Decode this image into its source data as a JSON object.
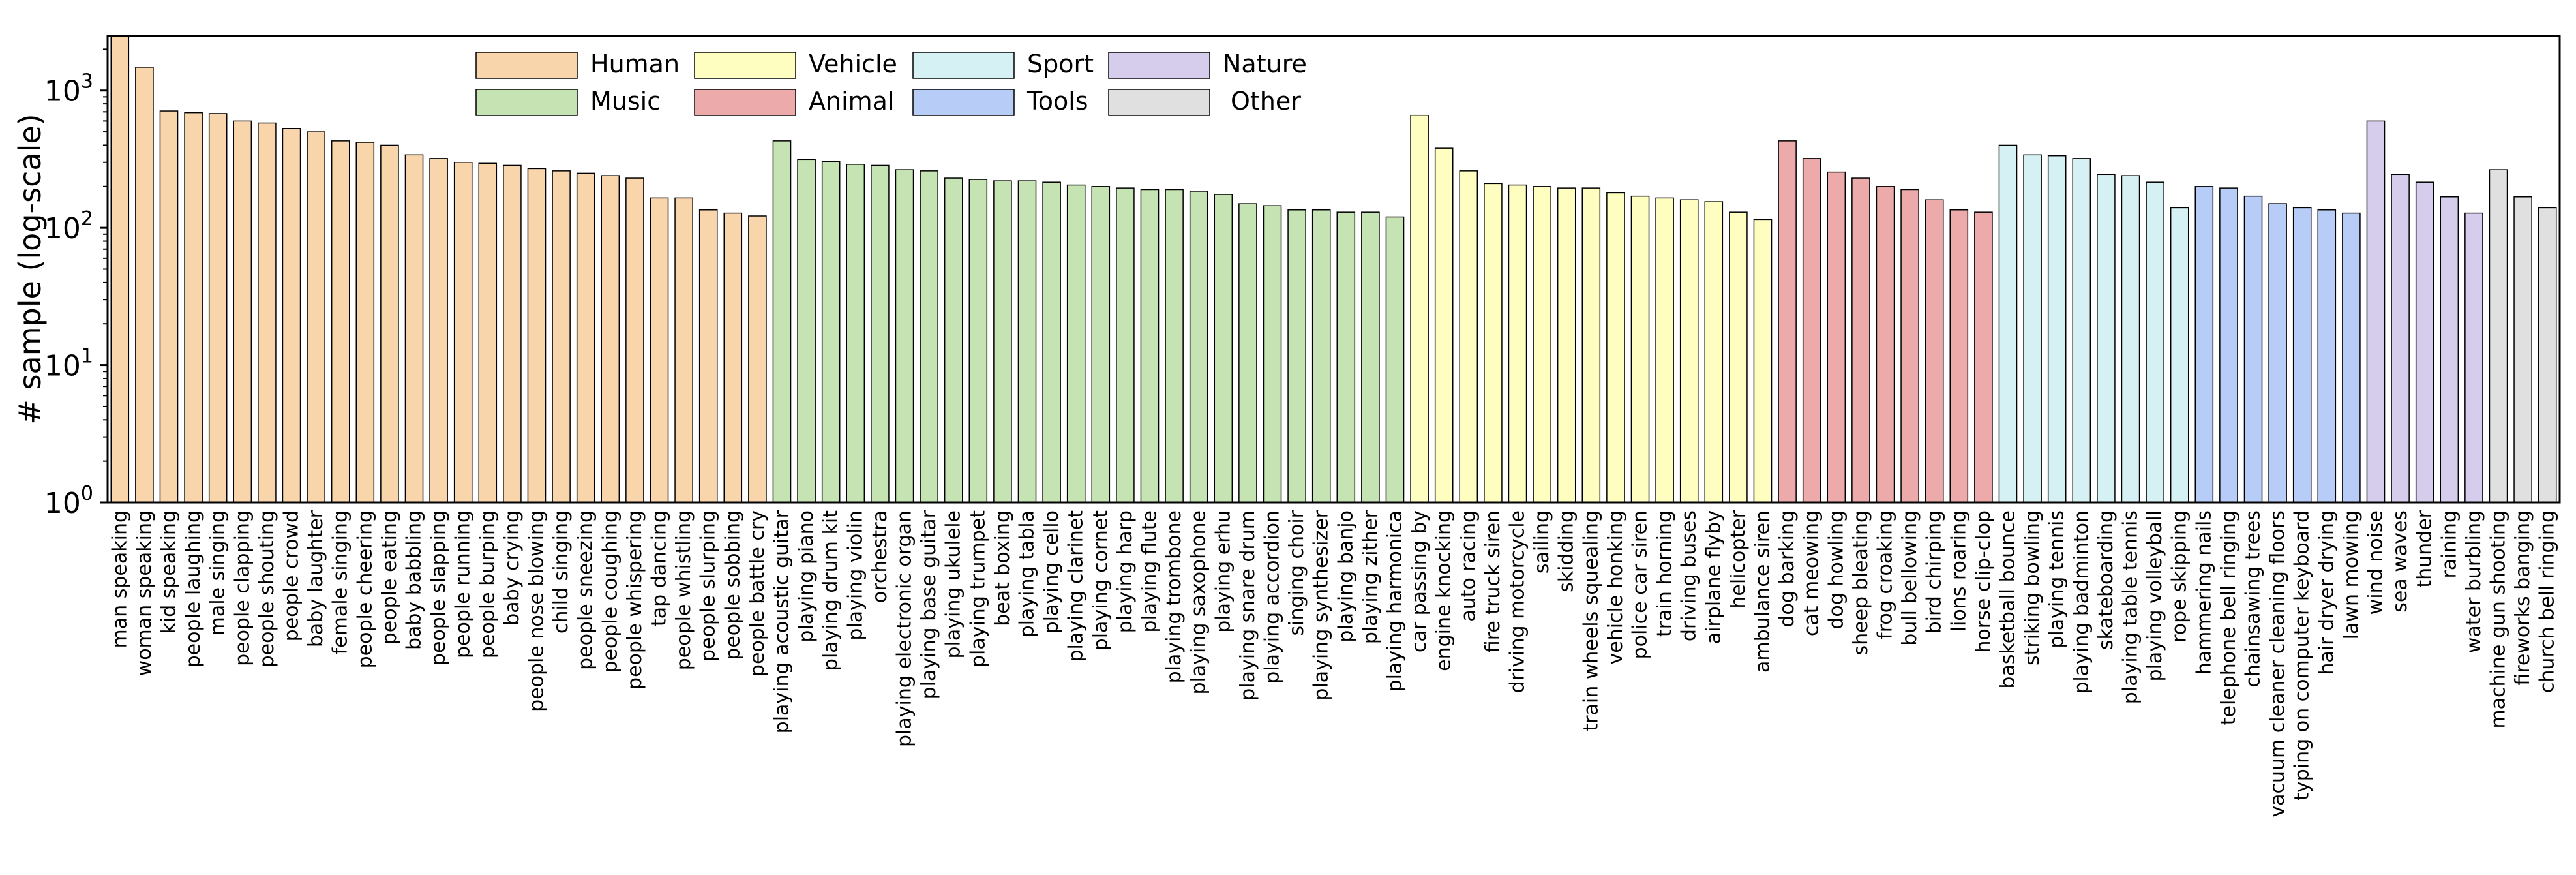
{
  "chart_data": {
    "type": "bar",
    "yscale": "log",
    "ylabel": "# sample (log-scale)",
    "ylim": [
      1,
      2500
    ],
    "y_ticks": [
      {
        "base": "10",
        "exp": "0",
        "value": 1
      },
      {
        "base": "10",
        "exp": "1",
        "value": 10
      },
      {
        "base": "10",
        "exp": "2",
        "value": 100
      },
      {
        "base": "10",
        "exp": "3",
        "value": 1000
      }
    ],
    "groups": [
      {
        "name": "Human",
        "color": "#f9d5ac"
      },
      {
        "name": "Music",
        "color": "#c6e4b3"
      },
      {
        "name": "Vehicle",
        "color": "#fefec0"
      },
      {
        "name": "Animal",
        "color": "#ecaaaa"
      },
      {
        "name": "Sport",
        "color": "#d6f1f4"
      },
      {
        "name": "Tools",
        "color": "#b7cdf8"
      },
      {
        "name": "Nature",
        "color": "#d5cdeb"
      },
      {
        "name": "Other",
        "color": "#e0e0e0"
      }
    ],
    "categories": [
      "man speaking",
      "woman speaking",
      "kid speaking",
      "people laughing",
      "male singing",
      "people clapping",
      "people shouting",
      "people crowd",
      "baby laughter",
      "female singing",
      "people cheering",
      "people eating",
      "baby babbling",
      "people slapping",
      "people running",
      "people burping",
      "baby crying",
      "people nose blowing",
      "child singing",
      "people sneezing",
      "people coughing",
      "people whispering",
      "tap dancing",
      "people whistling",
      "people slurping",
      "people sobbing",
      "people battle cry",
      "playing acoustic guitar",
      "playing piano",
      "playing drum kit",
      "playing violin",
      "orchestra",
      "playing electronic organ",
      "playing base guitar",
      "playing ukulele",
      "playing trumpet",
      "beat boxing",
      "playing tabla",
      "playing cello",
      "playing clarinet",
      "playing cornet",
      "playing harp",
      "playing flute",
      "playing trombone",
      "playing saxophone",
      "playing erhu",
      "playing snare drum",
      "playing accordion",
      "singing choir",
      "playing synthesizer",
      "playing banjo",
      "playing zither",
      "playing harmonica",
      "car passing by",
      "engine knocking",
      "auto racing",
      "fire truck siren",
      "driving motorcycle",
      "sailing",
      "skidding",
      "train wheels squealing",
      "vehicle honking",
      "police car siren",
      "train horning",
      "driving buses",
      "airplane flyby",
      "helicopter",
      "ambulance siren",
      "dog barking",
      "cat meowing",
      "dog howling",
      "sheep bleating",
      "frog croaking",
      "bull bellowing",
      "bird chirping",
      "lions roaring",
      "horse clip-clop",
      "basketball bounce",
      "striking bowling",
      "playing tennis",
      "playing badminton",
      "skateboarding",
      "playing table tennis",
      "playing volleyball",
      "rope skipping",
      "hammering nails",
      "telephone bell ringing",
      "chainsawing trees",
      "vacuum cleaner cleaning floors",
      "typing on computer keyboard",
      "hair dryer drying",
      "lawn mowing",
      "wind noise",
      "sea waves",
      "thunder",
      "raining",
      "water burbling",
      "machine gun shooting",
      "fireworks banging",
      "church bell ringing"
    ],
    "group_index": [
      0,
      0,
      0,
      0,
      0,
      0,
      0,
      0,
      0,
      0,
      0,
      0,
      0,
      0,
      0,
      0,
      0,
      0,
      0,
      0,
      0,
      0,
      0,
      0,
      0,
      0,
      0,
      1,
      1,
      1,
      1,
      1,
      1,
      1,
      1,
      1,
      1,
      1,
      1,
      1,
      1,
      1,
      1,
      1,
      1,
      1,
      1,
      1,
      1,
      1,
      1,
      1,
      1,
      2,
      2,
      2,
      2,
      2,
      2,
      2,
      2,
      2,
      2,
      2,
      2,
      2,
      2,
      2,
      3,
      3,
      3,
      3,
      3,
      3,
      3,
      3,
      3,
      4,
      4,
      4,
      4,
      4,
      4,
      4,
      4,
      5,
      5,
      5,
      5,
      5,
      5,
      5,
      6,
      6,
      6,
      6,
      6,
      7,
      7,
      7
    ],
    "values": [
      2500,
      1480,
      710,
      690,
      680,
      600,
      580,
      530,
      500,
      430,
      420,
      400,
      340,
      320,
      300,
      295,
      285,
      270,
      260,
      250,
      240,
      230,
      165,
      165,
      135,
      128,
      122,
      430,
      315,
      305,
      290,
      285,
      265,
      260,
      230,
      225,
      220,
      220,
      215,
      205,
      200,
      195,
      190,
      190,
      185,
      175,
      150,
      145,
      135,
      135,
      130,
      130,
      120,
      660,
      380,
      260,
      210,
      205,
      200,
      195,
      195,
      180,
      170,
      165,
      160,
      155,
      130,
      115,
      430,
      320,
      255,
      230,
      200,
      190,
      160,
      135,
      130,
      400,
      340,
      335,
      320,
      245,
      240,
      215,
      140,
      200,
      195,
      170,
      150,
      140,
      135,
      128,
      600,
      245,
      215,
      168,
      128,
      265,
      168,
      140
    ]
  }
}
